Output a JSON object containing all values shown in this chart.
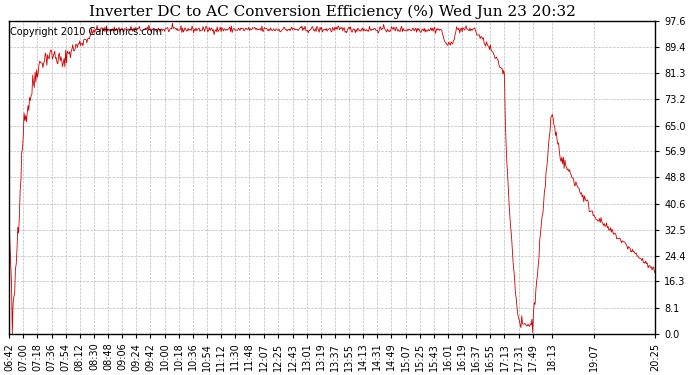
{
  "title": "Inverter DC to AC Conversion Efficiency (%) Wed Jun 23 20:32",
  "copyright": "Copyright 2010 Cartronics.com",
  "line_color": "#cc0000",
  "bg_color": "#ffffff",
  "grid_color": "#bbbbbb",
  "yticks": [
    0.0,
    8.1,
    16.3,
    24.4,
    32.5,
    40.6,
    48.8,
    56.9,
    65.0,
    73.2,
    81.3,
    89.4,
    97.6
  ],
  "ymin": 0.0,
  "ymax": 97.6,
  "x_labels": [
    "06:42",
    "07:00",
    "07:18",
    "07:36",
    "07:54",
    "08:12",
    "08:30",
    "08:48",
    "09:06",
    "09:24",
    "09:42",
    "10:00",
    "10:18",
    "10:36",
    "10:54",
    "11:12",
    "11:30",
    "11:48",
    "12:07",
    "12:25",
    "12:43",
    "13:01",
    "13:19",
    "13:37",
    "13:55",
    "14:13",
    "14:31",
    "14:49",
    "15:07",
    "15:25",
    "15:43",
    "16:01",
    "16:19",
    "16:37",
    "16:55",
    "17:13",
    "17:31",
    "17:49",
    "18:13",
    "19:07",
    "20:25"
  ],
  "title_fontsize": 11,
  "copyright_fontsize": 7,
  "tick_fontsize": 7
}
